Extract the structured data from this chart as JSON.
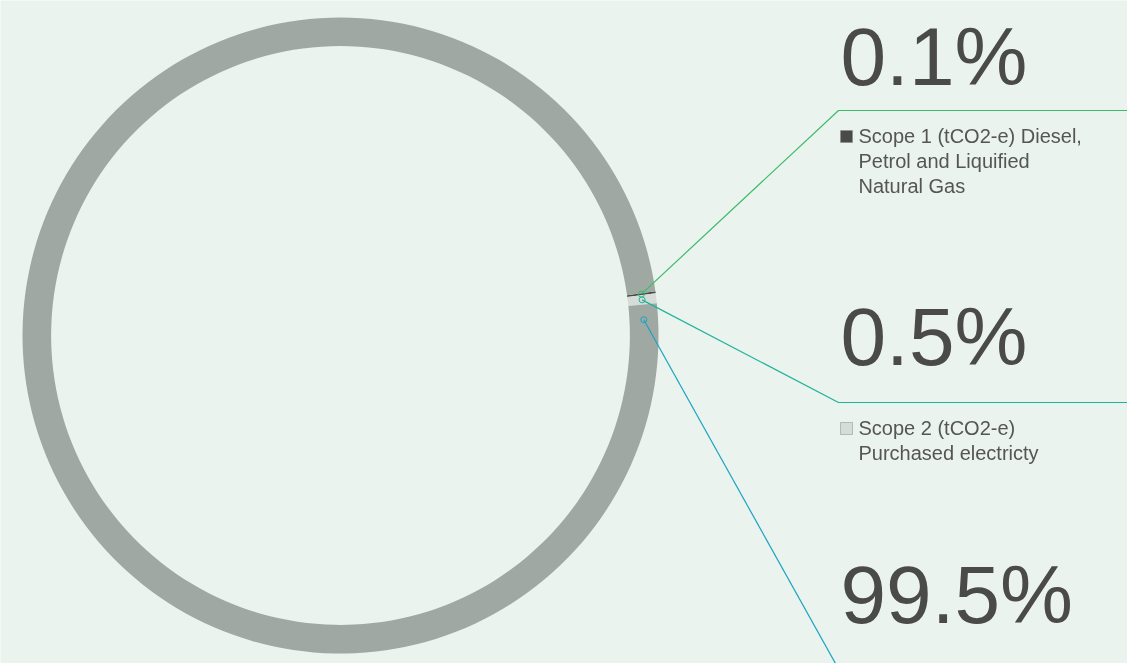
{
  "chart_data": {
    "type": "donut",
    "categories": [
      "Scope 1 (tCO2-e) Diesel, Petrol and Liquified Natural Gas",
      "Scope 2 (tCO2-e) Purchased electricty",
      null
    ],
    "values": [
      0.1,
      0.5,
      99.5
    ],
    "colors": [
      "#4a4a48",
      "#d6dcd8",
      "#a0a8a3"
    ],
    "value_labels": [
      "0.1%",
      "0.5%",
      "99.5%"
    ],
    "legend": "right"
  }
}
